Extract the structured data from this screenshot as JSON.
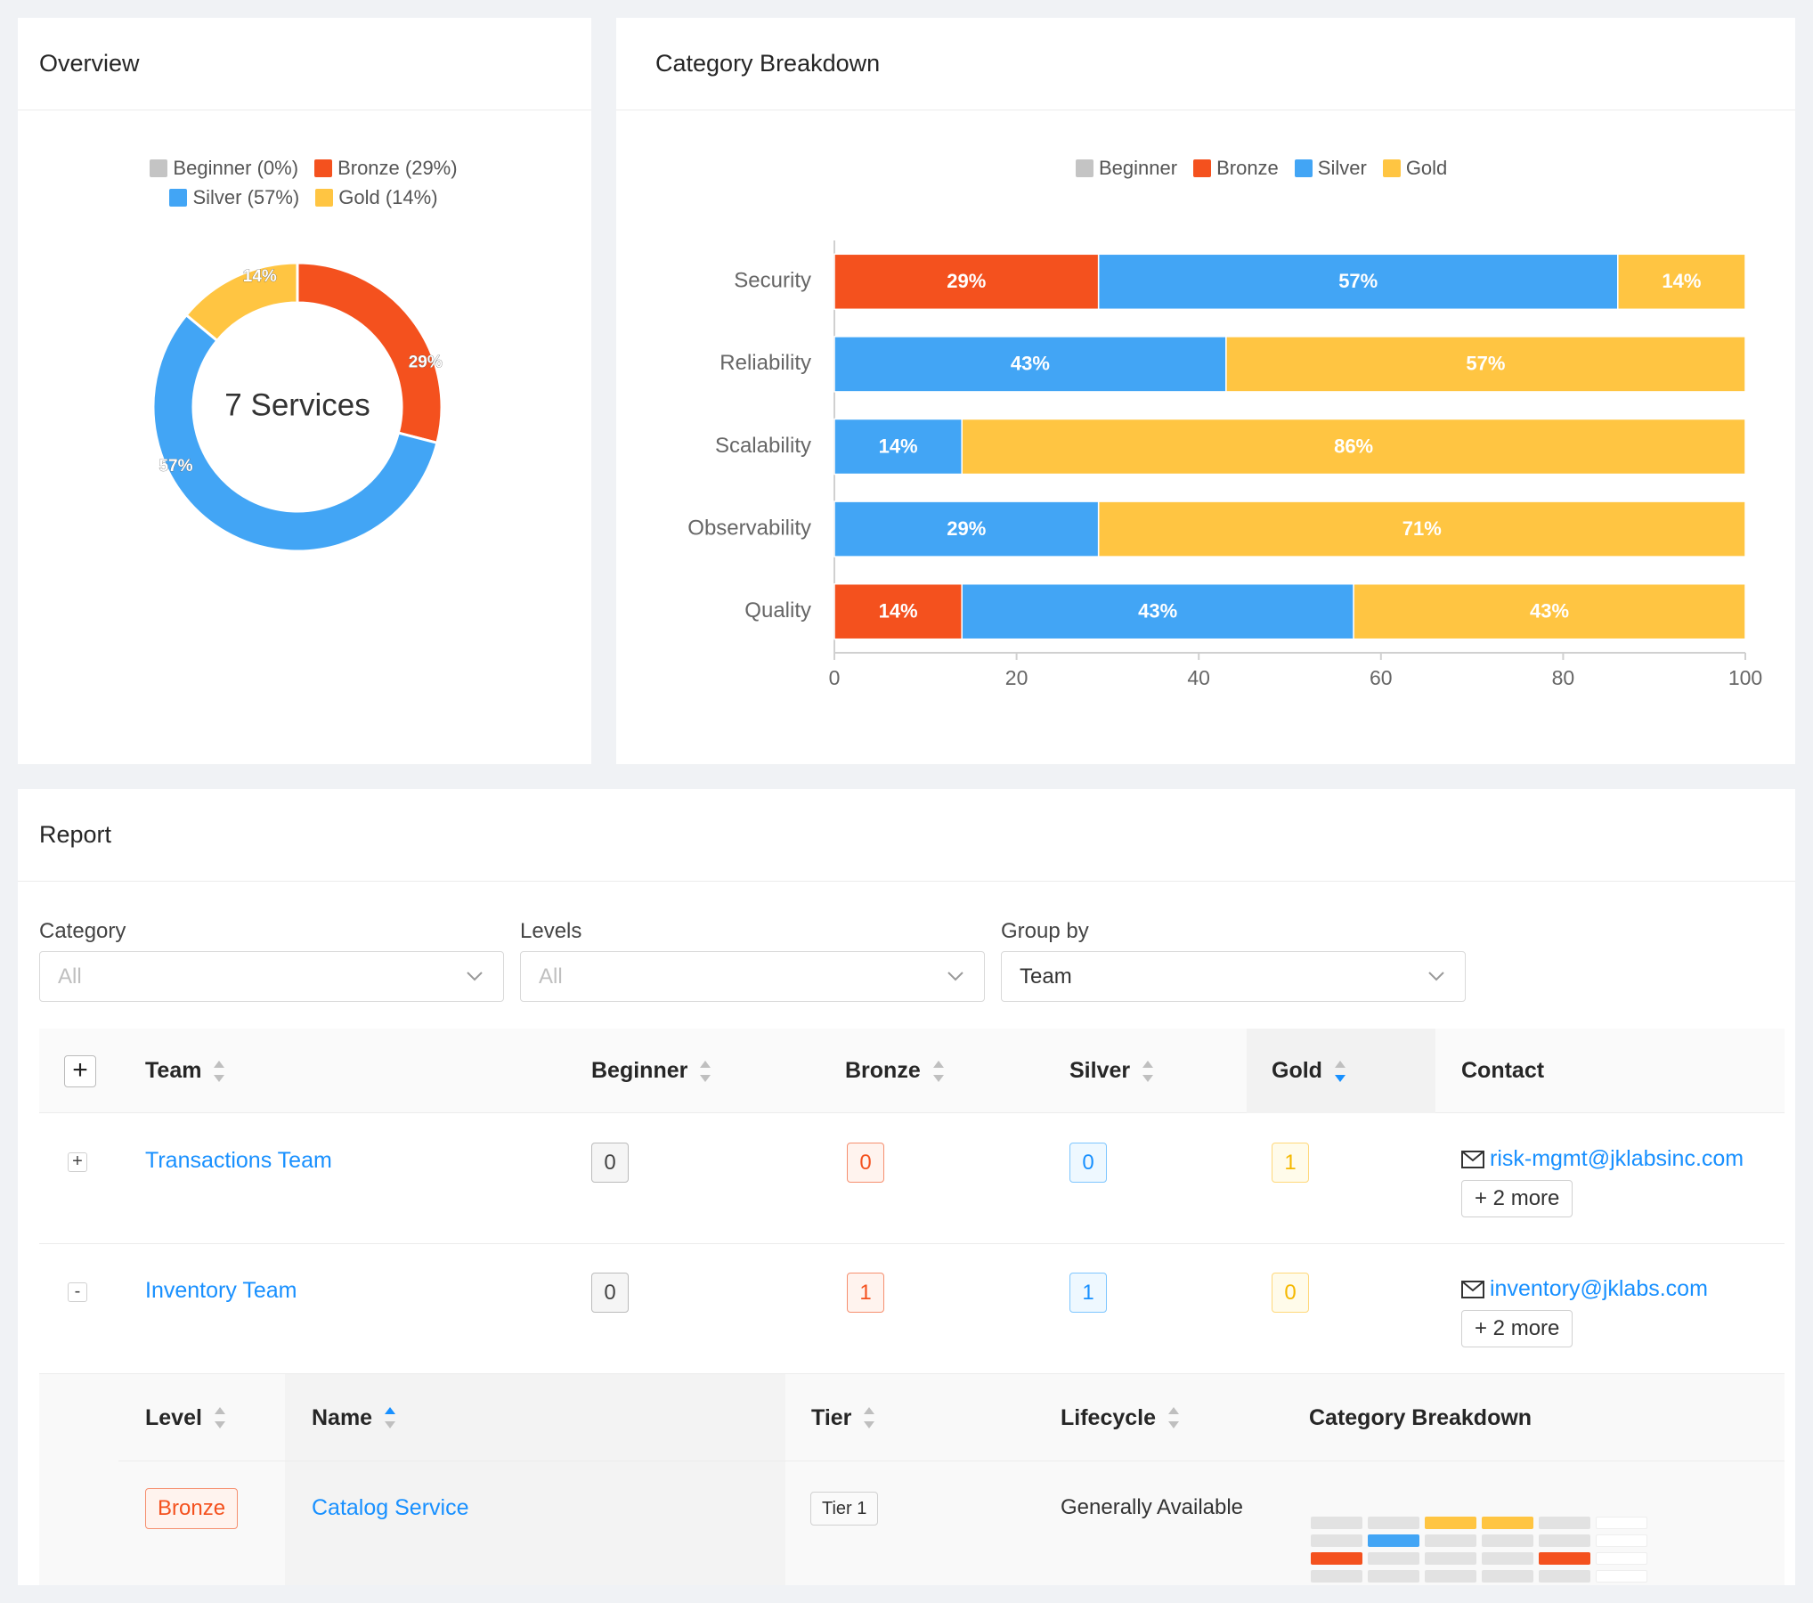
{
  "colors": {
    "beginner": "#c4c4c4",
    "bronze": "#f4511e",
    "silver": "#42a5f5",
    "gold": "#ffc542",
    "empty": "#e2e2e2"
  },
  "overview": {
    "title": "Overview",
    "legend": [
      {
        "label": "Beginner (0%)",
        "color": "#c4c4c4"
      },
      {
        "label": "Bronze (29%)",
        "color": "#f4511e"
      },
      {
        "label": "Silver (57%)",
        "color": "#42a5f5"
      },
      {
        "label": "Gold (14%)",
        "color": "#ffc542"
      }
    ],
    "center_label": "7 Services",
    "chart_data": {
      "type": "pie",
      "donut": true,
      "slices": [
        {
          "name": "Beginner",
          "value": 0,
          "label": "",
          "color": "#c4c4c4"
        },
        {
          "name": "Bronze",
          "value": 29,
          "label": "29%",
          "color": "#f4511e"
        },
        {
          "name": "Silver",
          "value": 57,
          "label": "57%",
          "color": "#42a5f5"
        },
        {
          "name": "Gold",
          "value": 14,
          "label": "14%",
          "color": "#ffc542"
        }
      ]
    }
  },
  "breakdown": {
    "title": "Category Breakdown",
    "legend": [
      {
        "label": "Beginner",
        "color": "#c4c4c4"
      },
      {
        "label": "Bronze",
        "color": "#f4511e"
      },
      {
        "label": "Silver",
        "color": "#42a5f5"
      },
      {
        "label": "Gold",
        "color": "#ffc542"
      }
    ],
    "chart_data": {
      "type": "bar",
      "orientation": "horizontal",
      "stacked": true,
      "categories": [
        "Security",
        "Reliability",
        "Scalability",
        "Observability",
        "Quality"
      ],
      "series": [
        {
          "name": "Beginner",
          "color": "#c4c4c4",
          "values": [
            0,
            0,
            0,
            0,
            0
          ]
        },
        {
          "name": "Bronze",
          "color": "#f4511e",
          "values": [
            29,
            0,
            0,
            0,
            14
          ]
        },
        {
          "name": "Silver",
          "color": "#42a5f5",
          "values": [
            57,
            43,
            14,
            29,
            43
          ]
        },
        {
          "name": "Gold",
          "color": "#ffc542",
          "values": [
            14,
            57,
            86,
            71,
            43
          ]
        }
      ],
      "xlim": [
        0,
        100
      ],
      "xticks": [
        0,
        20,
        40,
        60,
        80,
        100
      ],
      "grid": false,
      "legend_position": "top"
    }
  },
  "report": {
    "title": "Report",
    "filters": {
      "category": {
        "label": "Category",
        "value": "All"
      },
      "levels": {
        "label": "Levels",
        "value": "All"
      },
      "group_by": {
        "label": "Group by",
        "value": "Team"
      }
    },
    "table": {
      "expand_all": "+",
      "columns": {
        "team": "Team",
        "beginner": "Beginner",
        "bronze": "Bronze",
        "silver": "Silver",
        "gold": "Gold",
        "contact": "Contact"
      },
      "rows": [
        {
          "toggle": "+",
          "team": "Transactions Team",
          "beginner": "0",
          "bronze": "0",
          "silver": "0",
          "gold": "1",
          "contact": "risk-mgmt@jklabsinc.com",
          "more": "+ 2 more"
        },
        {
          "toggle": "-",
          "team": "Inventory Team",
          "beginner": "0",
          "bronze": "1",
          "silver": "1",
          "gold": "0",
          "contact": "inventory@jklabs.com",
          "more": "+ 2 more"
        }
      ]
    },
    "subtable": {
      "columns": {
        "level": "Level",
        "name": "Name",
        "tier": "Tier",
        "lifecycle": "Lifecycle",
        "breakdown": "Category Breakdown"
      },
      "rows": [
        {
          "level": "Bronze",
          "name": "Catalog Service",
          "tier": "Tier 1",
          "lifecycle": "Generally Available",
          "breakdown_grid": [
            [
              "empty",
              "empty",
              "gold",
              "gold",
              "empty",
              "blank"
            ],
            [
              "empty",
              "silver",
              "empty",
              "empty",
              "empty",
              "blank"
            ],
            [
              "bronze",
              "empty",
              "empty",
              "empty",
              "bronze",
              "blank"
            ],
            [
              "empty",
              "empty",
              "empty",
              "empty",
              "empty",
              "blank"
            ]
          ]
        }
      ]
    }
  }
}
